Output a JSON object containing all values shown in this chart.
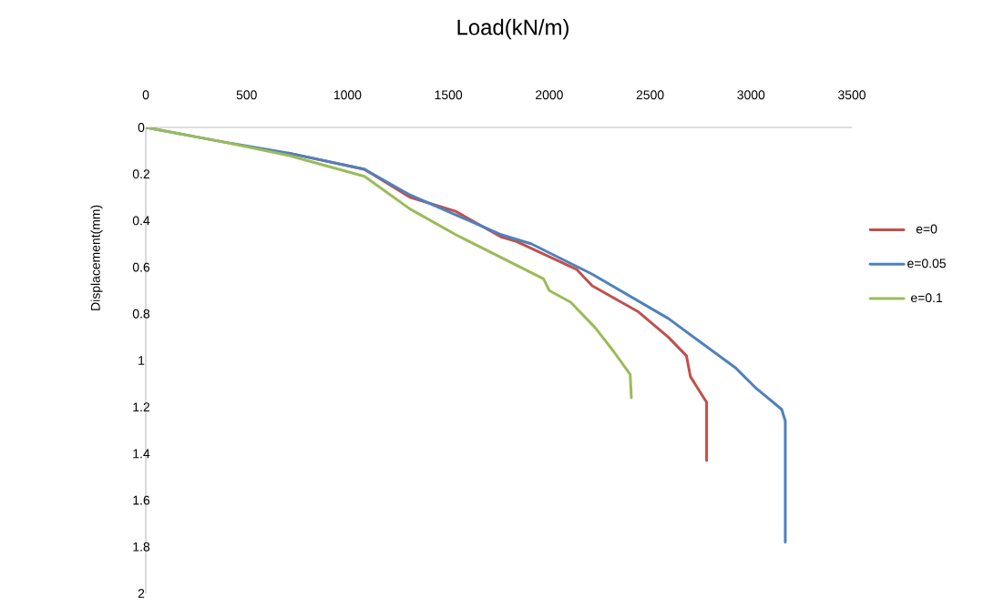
{
  "chart_data": {
    "type": "line",
    "xlabel": "Load(kN/m)",
    "ylabel": "Displacement(mm)",
    "xlim": [
      0,
      3500
    ],
    "xticks": [
      0,
      500,
      1000,
      1500,
      2000,
      2500,
      3000,
      3500
    ],
    "ylim": [
      2,
      0
    ],
    "yticks": [
      0,
      0.2,
      0.4,
      0.6,
      0.8,
      1,
      1.2,
      1.4,
      1.6,
      1.8,
      2
    ],
    "legend": "right",
    "grid": false,
    "marker": "none",
    "line_style": "solid",
    "series": [
      {
        "name": "e=0",
        "color": "#c0504d",
        "x": [
          707,
          1084,
          1310,
          1536,
          1761,
          1838,
          2137,
          2213,
          2439,
          2590,
          2680,
          2700,
          2780,
          2780
        ],
        "values": [
          0.11,
          0.18,
          0.3,
          0.36,
          0.47,
          0.49,
          0.61,
          0.68,
          0.79,
          0.9,
          0.98,
          1.07,
          1.18,
          1.43
        ]
      },
      {
        "name": "e=0.05",
        "color": "#4f81bd",
        "x": [
          0,
          406,
          707,
          1084,
          1310,
          1761,
          1912,
          2213,
          2590,
          2921,
          3026,
          3152,
          3170,
          3170
        ],
        "values": [
          0,
          0.066,
          0.11,
          0.18,
          0.29,
          0.46,
          0.5,
          0.63,
          0.82,
          1.03,
          1.12,
          1.21,
          1.26,
          1.78
        ]
      },
      {
        "name": "e=0.1",
        "color": "#9bbb59",
        "x": [
          0,
          406,
          707,
          1084,
          1310,
          1536,
          1972,
          2000,
          2106,
          2228,
          2318,
          2401,
          2407
        ],
        "values": [
          0,
          0.066,
          0.12,
          0.21,
          0.35,
          0.46,
          0.65,
          0.7,
          0.75,
          0.86,
          0.96,
          1.06,
          1.16
        ]
      }
    ]
  }
}
